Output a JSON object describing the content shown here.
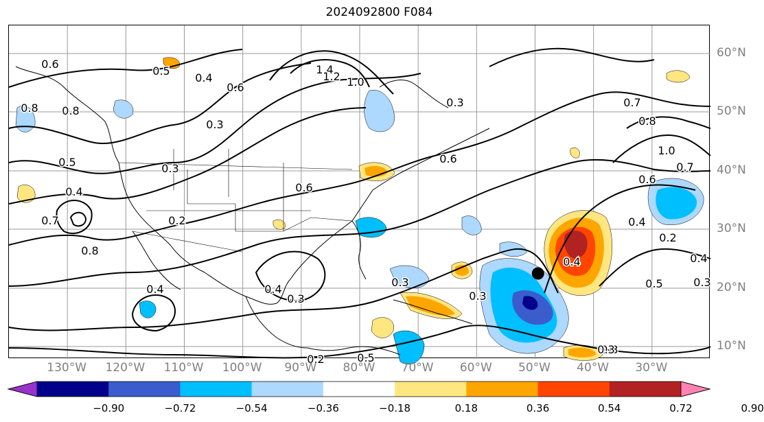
{
  "title": "2024092800 F084",
  "lon_labels": [
    "130°W",
    "120°W",
    "110°W",
    "100°W",
    "90°W",
    "80°W",
    "70°W",
    "60°W",
    "50°W",
    "40°W",
    "30°W"
  ],
  "lat_labels": [
    "60°N",
    "50°N",
    "40°N",
    "30°N",
    "20°N",
    "10°N"
  ],
  "colorbar": {
    "ticks": [
      "−0.90",
      "−0.72",
      "−0.54",
      "−0.36",
      "−0.18",
      "0.18",
      "0.36",
      "0.54",
      "0.72",
      "0.90"
    ],
    "colors": [
      "#9932cc",
      "#00008b",
      "#3a5ccc",
      "#00bfff",
      "#add8ff",
      "#ffffff",
      "#ffe680",
      "#ffa500",
      "#ff4500",
      "#b22222",
      "#ff82b4"
    ]
  },
  "contour_labels": [
    "0.6",
    "0.5",
    "0.4",
    "0.8",
    "1.4",
    "1.2",
    "1.0",
    "0.6",
    "0.7",
    "0.8",
    "1.0",
    "0.7",
    "0.6",
    "0.8",
    "0.5",
    "0.4",
    "0.7",
    "0.8",
    "0.3",
    "0.3",
    "0.2",
    "0.6",
    "0.3",
    "0.3",
    "0.4",
    "0.4",
    "0.5",
    "0.4",
    "0.3",
    "0.3",
    "0.2",
    "0.3",
    "0.4",
    "0.2",
    "0.3",
    "0.5",
    "0.4",
    "0.6",
    "0.3"
  ],
  "marker": {
    "lon": -49.5,
    "lat": 22.5
  }
}
